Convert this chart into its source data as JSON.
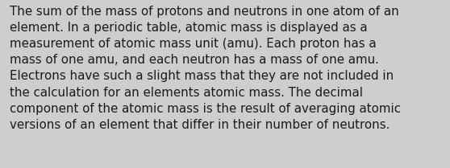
{
  "background_color": "#cecece",
  "text_color": "#1a1a1a",
  "font_family": "DejaVu Sans",
  "font_size": 10.8,
  "lines": [
    "The sum of the mass of protons and neutrons in one atom of an",
    "element. In a periodic table, atomic mass is displayed as a",
    "measurement of atomic mass unit (amu). Each proton has a",
    "mass of one amu, and each neutron has a mass of one amu.",
    "Electrons have such a slight mass that they are not included in",
    "the calculation for an elements atomic mass. The decimal",
    "component of the atomic mass is the result of averaging atomic",
    "versions of an element that differ in their number of neutrons."
  ],
  "fig_width": 5.58,
  "fig_height": 2.09,
  "dpi": 100
}
